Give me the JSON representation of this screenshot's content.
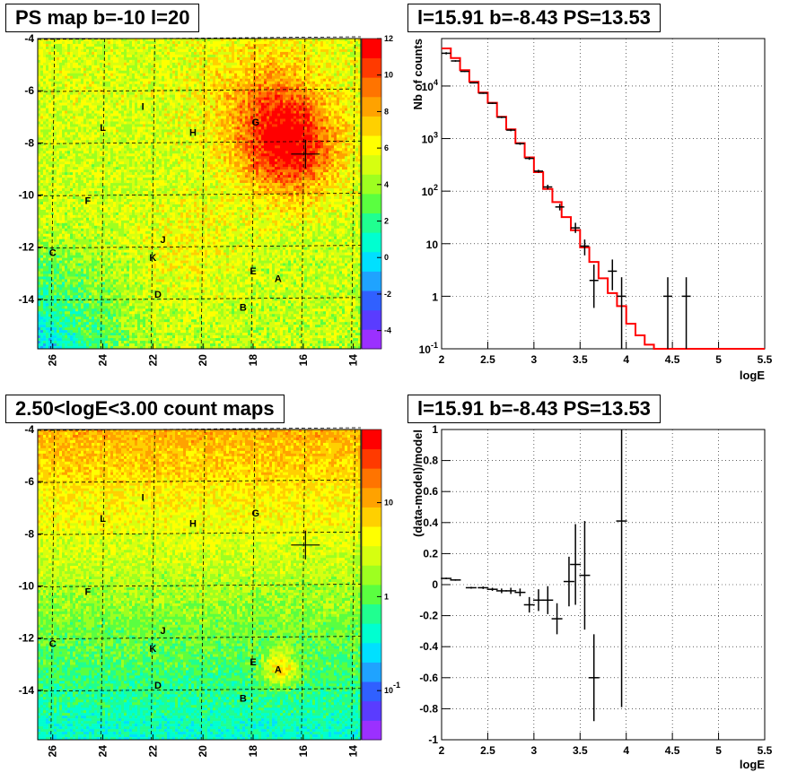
{
  "panels": {
    "ps_map_title": "PS map b=-10 l=20",
    "spectrum_title": "l=15.91 b=-8.43 PS=13.53",
    "count_map_title": "2.50<logE<3.00 count maps",
    "residual_title": "l=15.91 b=-8.43 PS=13.53"
  },
  "chart_data": [
    {
      "type": "heatmap",
      "id": "ps_map",
      "x_ticks": [
        "26",
        "24",
        "22",
        "20",
        "18",
        "16",
        "14"
      ],
      "y_ticks": [
        "-4",
        "-6",
        "-8",
        "-10",
        "-12",
        "-14"
      ],
      "xlim": [
        26.6,
        13.7
      ],
      "ylim": [
        -15.9,
        -4
      ],
      "colorbar_ticks": [
        "12",
        "10",
        "8",
        "6",
        "4",
        "2",
        "0",
        "-2",
        "-4"
      ],
      "colorbar_range": [
        -5,
        12
      ],
      "sources": [
        {
          "label": "I",
          "l": 22.4,
          "b": -6.6
        },
        {
          "label": "L",
          "l": 24.0,
          "b": -7.4
        },
        {
          "label": "H",
          "l": 20.4,
          "b": -7.6
        },
        {
          "label": "G",
          "l": 17.9,
          "b": -7.2
        },
        {
          "label": "F",
          "l": 24.6,
          "b": -10.2
        },
        {
          "label": "J",
          "l": 21.6,
          "b": -11.7
        },
        {
          "label": "C",
          "l": 26.0,
          "b": -12.2
        },
        {
          "label": "K",
          "l": 22.0,
          "b": -12.4
        },
        {
          "label": "E",
          "l": 18.0,
          "b": -12.9
        },
        {
          "label": "A",
          "l": 17.0,
          "b": -13.2
        },
        {
          "label": "D",
          "l": 21.8,
          "b": -13.8
        },
        {
          "label": "B",
          "l": 18.4,
          "b": -14.3
        }
      ],
      "marker": {
        "l": 15.91,
        "b": -8.43
      }
    },
    {
      "type": "line",
      "id": "spectrum",
      "xlabel": "logE",
      "ylabel": "Nb of counts",
      "xlim": [
        2,
        5.5
      ],
      "ylim": [
        0.1,
        80000
      ],
      "log_y": true,
      "x_ticks": [
        "2",
        "2.5",
        "3",
        "3.5",
        "4",
        "4.5",
        "5",
        "5.5"
      ],
      "y_ticks": [
        {
          "value": 10000,
          "base": "10",
          "exp": "4"
        },
        {
          "value": 1000,
          "base": "10",
          "exp": "3"
        },
        {
          "value": 100,
          "base": "10",
          "exp": "2"
        },
        {
          "value": 10,
          "base": "10",
          "exp": ""
        },
        {
          "value": 1,
          "base": "1",
          "exp": ""
        },
        {
          "value": 0.1,
          "base": "10",
          "exp": "-1"
        }
      ],
      "model_edges": [
        2.0,
        2.1,
        2.2,
        2.3,
        2.4,
        2.5,
        2.6,
        2.7,
        2.8,
        2.9,
        3.0,
        3.1,
        3.2,
        3.3,
        3.4,
        3.5,
        3.6,
        3.7,
        3.8,
        3.9,
        4.0,
        4.1,
        4.2,
        4.3,
        4.4,
        4.5,
        4.6,
        4.7,
        4.8,
        4.9,
        5.0,
        5.1,
        5.2,
        5.3,
        5.4,
        5.5
      ],
      "model_values": [
        52000,
        34000,
        20000,
        12000,
        7500,
        4800,
        2600,
        1500,
        820,
        440,
        230,
        110,
        62,
        32,
        18,
        8.5,
        4.5,
        2.2,
        1.15,
        0.65,
        0.3,
        0.18,
        0.12,
        0.1,
        0.1,
        0.1,
        0.1,
        0.1,
        0.1,
        0.1,
        0.1,
        0.1,
        0.1,
        0.1,
        0.1
      ],
      "data_points": [
        {
          "x": 2.05,
          "y": 42000,
          "lo": 40000,
          "hi": 44000
        },
        {
          "x": 2.15,
          "y": 30000,
          "lo": 29000,
          "hi": 31000
        },
        {
          "x": 2.25,
          "y": 19000,
          "lo": 18500,
          "hi": 19500
        },
        {
          "x": 2.35,
          "y": 11500,
          "lo": 11200,
          "hi": 11800
        },
        {
          "x": 2.45,
          "y": 7300,
          "lo": 7100,
          "hi": 7500
        },
        {
          "x": 2.55,
          "y": 4700,
          "lo": 4550,
          "hi": 4850
        },
        {
          "x": 2.65,
          "y": 2550,
          "lo": 2450,
          "hi": 2650
        },
        {
          "x": 2.75,
          "y": 1450,
          "lo": 1380,
          "hi": 1520
        },
        {
          "x": 2.85,
          "y": 800,
          "lo": 760,
          "hi": 840
        },
        {
          "x": 2.95,
          "y": 420,
          "lo": 395,
          "hi": 445
        },
        {
          "x": 3.05,
          "y": 240,
          "lo": 225,
          "hi": 255
        },
        {
          "x": 3.15,
          "y": 120,
          "lo": 108,
          "hi": 132
        },
        {
          "x": 3.28,
          "y": 50,
          "lo": 43,
          "hi": 57
        },
        {
          "x": 3.45,
          "y": 20,
          "lo": 16,
          "hi": 25
        },
        {
          "x": 3.55,
          "y": 9,
          "lo": 6,
          "hi": 12
        },
        {
          "x": 3.65,
          "y": 2,
          "lo": 0.6,
          "hi": 4
        },
        {
          "x": 3.85,
          "y": 3,
          "lo": 1.3,
          "hi": 5
        },
        {
          "x": 3.95,
          "y": 1,
          "lo": 0.1,
          "hi": 2.3
        },
        {
          "x": 4.45,
          "y": 1,
          "lo": 0.1,
          "hi": 2.3
        },
        {
          "x": 4.65,
          "y": 1,
          "lo": 0.1,
          "hi": 2.3
        }
      ]
    },
    {
      "type": "heatmap",
      "id": "count_map",
      "x_ticks": [
        "26",
        "24",
        "22",
        "20",
        "18",
        "16",
        "14"
      ],
      "y_ticks": [
        "-4",
        "-6",
        "-8",
        "-10",
        "-12",
        "-14"
      ],
      "xlim": [
        26.6,
        13.7
      ],
      "ylim": [
        -15.9,
        -4
      ],
      "colorbar_ticks": [
        {
          "value": 10,
          "base": "10",
          "exp": ""
        },
        {
          "value": 1,
          "base": "1",
          "exp": ""
        },
        {
          "value": 0.1,
          "base": "10",
          "exp": "-1"
        }
      ],
      "colorbar_range": [
        0.03,
        60
      ],
      "log_color": true,
      "sources": [
        {
          "label": "I",
          "l": 22.4,
          "b": -6.6
        },
        {
          "label": "L",
          "l": 24.0,
          "b": -7.4
        },
        {
          "label": "H",
          "l": 20.4,
          "b": -7.6
        },
        {
          "label": "G",
          "l": 17.9,
          "b": -7.2
        },
        {
          "label": "F",
          "l": 24.6,
          "b": -10.2
        },
        {
          "label": "J",
          "l": 21.6,
          "b": -11.7
        },
        {
          "label": "C",
          "l": 26.0,
          "b": -12.2
        },
        {
          "label": "K",
          "l": 22.0,
          "b": -12.4
        },
        {
          "label": "E",
          "l": 18.0,
          "b": -12.9
        },
        {
          "label": "A",
          "l": 17.0,
          "b": -13.2
        },
        {
          "label": "D",
          "l": 21.8,
          "b": -13.8
        },
        {
          "label": "B",
          "l": 18.4,
          "b": -14.3
        }
      ],
      "marker": {
        "l": 15.91,
        "b": -8.43
      }
    },
    {
      "type": "scatter",
      "id": "residuals",
      "xlabel": "logE",
      "ylabel": "(data-model)/model",
      "xlim": [
        2,
        5.5
      ],
      "ylim": [
        -1,
        1
      ],
      "x_ticks": [
        "2",
        "2.5",
        "3",
        "3.5",
        "4",
        "4.5",
        "5",
        "5.5"
      ],
      "y_ticks": [
        "1",
        "0.8",
        "0.6",
        "0.4",
        "0.2",
        "0",
        "-0.2",
        "-0.4",
        "-0.6",
        "-0.8",
        "-1"
      ],
      "points": [
        {
          "x": 2.05,
          "y": 0.04,
          "err": 0.005
        },
        {
          "x": 2.15,
          "y": 0.03,
          "err": 0.005
        },
        {
          "x": 2.32,
          "y": -0.02,
          "err": 0.006
        },
        {
          "x": 2.45,
          "y": -0.02,
          "err": 0.008
        },
        {
          "x": 2.55,
          "y": -0.03,
          "err": 0.01
        },
        {
          "x": 2.65,
          "y": -0.04,
          "err": 0.015
        },
        {
          "x": 2.75,
          "y": -0.04,
          "err": 0.02
        },
        {
          "x": 2.85,
          "y": -0.05,
          "err": 0.025
        },
        {
          "x": 2.95,
          "y": -0.13,
          "err": 0.05
        },
        {
          "x": 3.05,
          "y": -0.1,
          "err": 0.07
        },
        {
          "x": 3.15,
          "y": -0.1,
          "err": 0.09
        },
        {
          "x": 3.25,
          "y": -0.22,
          "err": 0.1
        },
        {
          "x": 3.38,
          "y": 0.02,
          "err": 0.16
        },
        {
          "x": 3.45,
          "y": 0.13,
          "err": 0.26
        },
        {
          "x": 3.55,
          "y": 0.06,
          "err": 0.35
        },
        {
          "x": 3.65,
          "y": -0.6,
          "err": 0.28
        },
        {
          "x": 3.95,
          "y": 0.41,
          "err": 1.2
        }
      ]
    }
  ]
}
